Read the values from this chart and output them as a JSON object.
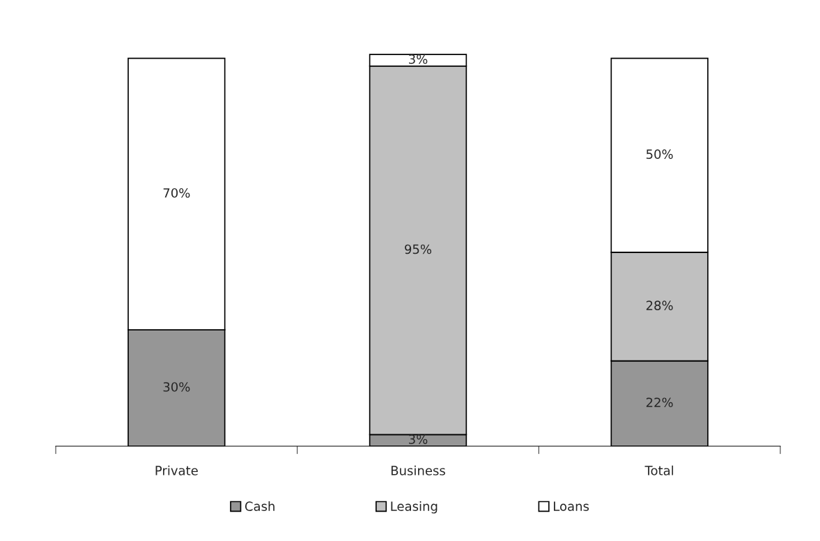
{
  "chart_data": {
    "type": "bar",
    "stacked": true,
    "categories": [
      "Private",
      "Business",
      "Total"
    ],
    "series": [
      {
        "name": "Cash",
        "color": "#969696",
        "values": [
          30,
          3,
          22
        ],
        "value_labels": [
          "30%",
          "3%",
          "22%"
        ]
      },
      {
        "name": "Leasing",
        "color": "#c0c0c0",
        "values": [
          0,
          95,
          28
        ],
        "value_labels": [
          null,
          "95%",
          "28%"
        ]
      },
      {
        "name": "Loans",
        "color": "#ffffff",
        "values": [
          70,
          3,
          50
        ],
        "value_labels": [
          "70%",
          "3%",
          "50%"
        ]
      }
    ],
    "legend": "bottom"
  }
}
